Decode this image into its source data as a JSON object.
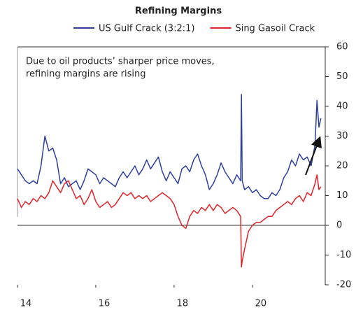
{
  "chart_data": {
    "type": "line",
    "title": "Refining Margins",
    "annotation": [
      "Due to oil products’ sharper price moves,",
      "refining margins are rising"
    ],
    "x": [
      14.0,
      14.1,
      14.2,
      14.3,
      14.4,
      14.5,
      14.6,
      14.7,
      14.8,
      14.9,
      15.0,
      15.1,
      15.2,
      15.3,
      15.4,
      15.5,
      15.6,
      15.7,
      15.8,
      15.9,
      16.0,
      16.1,
      16.2,
      16.3,
      16.4,
      16.5,
      16.6,
      16.7,
      16.8,
      16.9,
      17.0,
      17.1,
      17.2,
      17.3,
      17.4,
      17.5,
      17.6,
      17.7,
      17.8,
      17.9,
      18.0,
      18.1,
      18.2,
      18.3,
      18.4,
      18.5,
      18.6,
      18.7,
      18.8,
      18.9,
      19.0,
      19.1,
      19.2,
      19.3,
      19.4,
      19.5,
      19.6,
      19.7,
      19.72,
      19.74,
      19.8,
      19.9,
      20.0,
      20.1,
      20.2,
      20.3,
      20.4,
      20.5,
      20.6,
      20.7,
      20.8,
      20.9,
      21.0,
      21.1,
      21.2,
      21.3,
      21.4,
      21.5,
      21.6,
      21.65,
      21.7,
      21.75
    ],
    "series": [
      {
        "name": "US Gulf Crack (3:2:1)",
        "color": "#2e3f9e",
        "values": [
          19,
          17,
          15,
          14,
          15,
          14,
          20,
          30,
          25,
          26,
          22,
          14,
          16,
          13,
          14,
          15,
          12,
          15,
          19,
          18,
          17,
          14,
          16,
          15,
          14,
          13,
          16,
          18,
          16,
          18,
          20,
          17,
          19,
          22,
          19,
          21,
          23,
          18,
          15,
          18,
          16,
          14,
          19,
          20,
          18,
          22,
          24,
          20,
          17,
          12,
          14,
          17,
          21,
          18,
          16,
          14,
          17,
          15,
          44,
          15,
          12,
          13,
          11,
          12,
          10,
          9,
          9,
          11,
          10,
          12,
          16,
          18,
          22,
          20,
          24,
          22,
          23,
          20,
          27,
          42,
          33,
          36
        ]
      },
      {
        "name": "Sing Gasoil Crack",
        "color": "#e0232a",
        "values": [
          9,
          6,
          8,
          7,
          9,
          8,
          10,
          9,
          11,
          15,
          13,
          11,
          14,
          15,
          12,
          9,
          10,
          7,
          9,
          12,
          8,
          6,
          7,
          8,
          6,
          7,
          9,
          11,
          10,
          11,
          9,
          10,
          9,
          10,
          8,
          9,
          10,
          11,
          10,
          9,
          7,
          3,
          0,
          -1,
          3,
          5,
          4,
          6,
          5,
          7,
          5,
          7,
          6,
          4,
          5,
          6,
          5,
          3,
          -14,
          -12,
          -8,
          -2,
          0,
          1,
          1,
          2,
          3,
          3,
          5,
          6,
          7,
          8,
          7,
          9,
          10,
          8,
          11,
          10,
          14,
          17,
          12,
          13
        ]
      }
    ],
    "xlim": [
      14,
      21.86
    ],
    "xticks": [
      14,
      16,
      18,
      20
    ],
    "ylim": [
      -20,
      60
    ],
    "yticks": [
      -20,
      -10,
      0,
      10,
      20,
      30,
      40,
      50,
      60
    ]
  }
}
